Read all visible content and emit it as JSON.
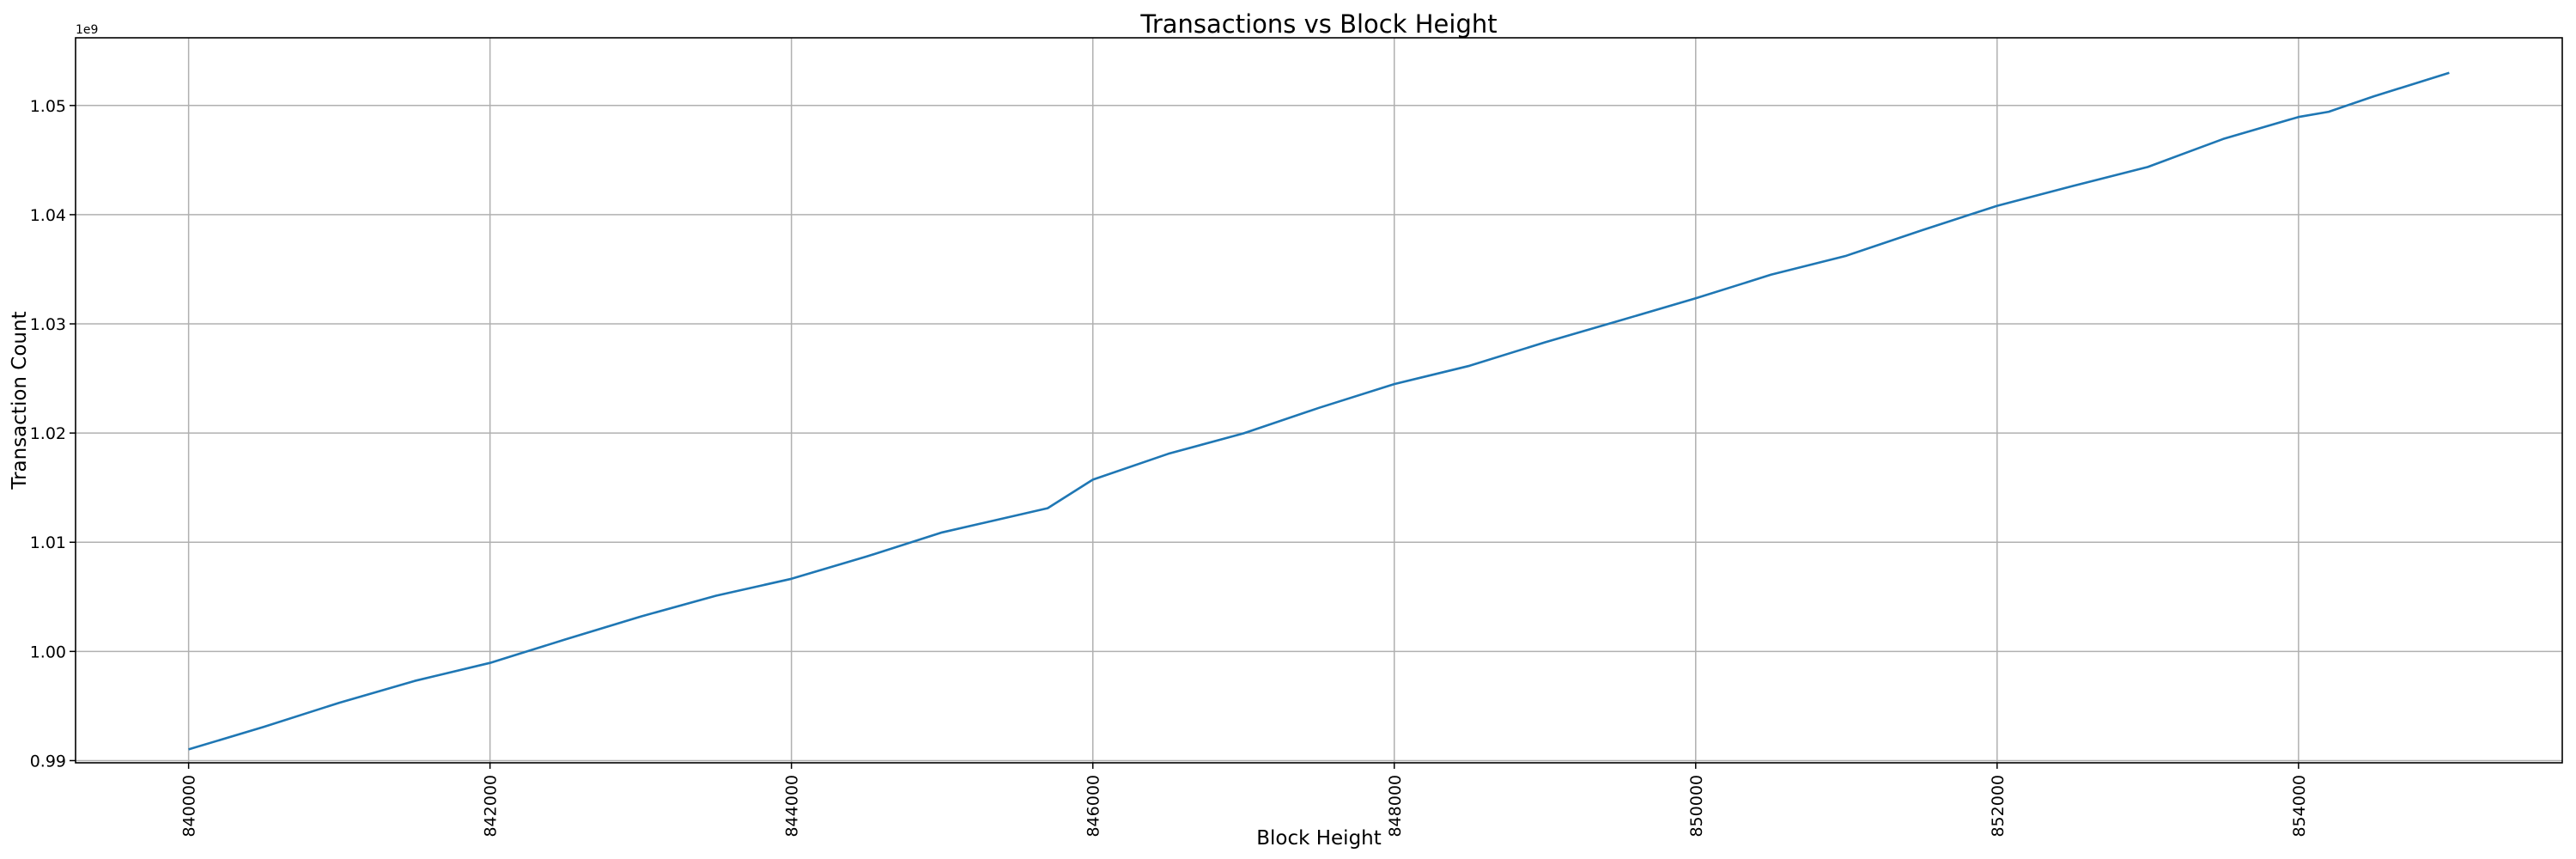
{
  "chart_data": {
    "type": "line",
    "title": "Transactions vs Block Height",
    "xlabel": "Block Height",
    "ylabel": "Transaction Count",
    "y_offset_label": "1e9",
    "xlim": [
      839250,
      855750
    ],
    "ylim": [
      0.9898,
      1.0562
    ],
    "grid": true,
    "line_color": "#1f77b4",
    "x_ticks": [
      840000,
      842000,
      844000,
      846000,
      848000,
      850000,
      852000,
      854000
    ],
    "x_tick_labels": [
      "840000",
      "842000",
      "844000",
      "846000",
      "848000",
      "850000",
      "852000",
      "854000"
    ],
    "y_ticks": [
      0.99,
      1.0,
      1.01,
      1.02,
      1.03,
      1.04,
      1.05
    ],
    "y_tick_labels": [
      "0.99",
      "1.00",
      "1.01",
      "1.02",
      "1.03",
      "1.04",
      "1.05"
    ],
    "series": [
      {
        "x": [
          840000,
          840500,
          841000,
          841500,
          842000,
          842500,
          843000,
          843500,
          844000,
          844500,
          845000,
          845700,
          846000,
          846500,
          847000,
          847500,
          848000,
          848500,
          849000,
          849500,
          850000,
          850500,
          851000,
          851500,
          852000,
          852500,
          853000,
          853500,
          854000,
          854200,
          854500,
          855000
        ],
        "y": [
          0.99103,
          0.9931,
          0.9953,
          0.9973,
          0.99895,
          1.0011,
          1.0032,
          1.0051,
          1.00665,
          1.0087,
          1.0109,
          1.01312,
          1.01573,
          1.0181,
          1.01997,
          1.02231,
          1.02449,
          1.02616,
          1.02831,
          1.03032,
          1.03234,
          1.0345,
          1.03624,
          1.03857,
          1.04081,
          1.04262,
          1.04437,
          1.04693,
          1.04895,
          1.04943,
          1.05084,
          1.05299
        ]
      }
    ]
  }
}
